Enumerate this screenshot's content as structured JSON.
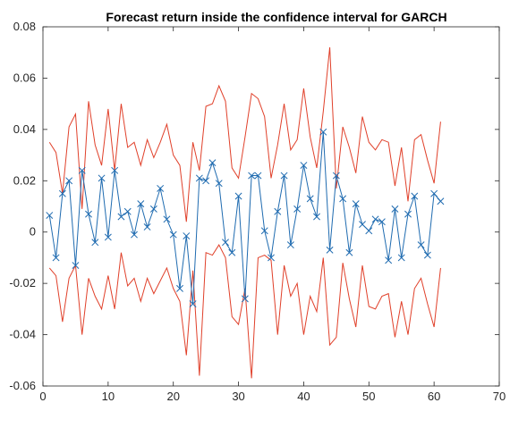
{
  "chart_data": {
    "type": "line",
    "title": "Forecast return inside the confidence interval for GARCH",
    "xlabel": "",
    "ylabel": "",
    "xlim": [
      0,
      70
    ],
    "ylim": [
      -0.06,
      0.08
    ],
    "x_ticks": [
      0,
      10,
      20,
      30,
      40,
      50,
      60,
      70
    ],
    "y_ticks": [
      -0.06,
      -0.04,
      -0.02,
      0,
      0.02,
      0.04,
      0.06,
      0.08
    ],
    "x_tick_labels": [
      "0",
      "10",
      "20",
      "30",
      "40",
      "50",
      "60",
      "70"
    ],
    "y_tick_labels": [
      "-0.06",
      "-0.04",
      "-0.02",
      "0",
      "0.02",
      "0.04",
      "0.06",
      "0.08"
    ],
    "grid": false,
    "x": [
      1,
      2,
      3,
      4,
      5,
      6,
      7,
      8,
      9,
      10,
      11,
      12,
      13,
      14,
      15,
      16,
      17,
      18,
      19,
      20,
      21,
      22,
      23,
      24,
      25,
      26,
      27,
      28,
      29,
      30,
      31,
      32,
      33,
      34,
      35,
      36,
      37,
      38,
      39,
      40,
      41,
      42,
      43,
      44,
      45,
      46,
      47,
      48,
      49,
      50,
      51,
      52,
      53,
      54,
      55,
      56,
      57,
      58,
      59,
      60,
      61
    ],
    "series": [
      {
        "color": "#e0402a",
        "marker": "none",
        "values": [
          0.035,
          0.031,
          0.015,
          0.041,
          0.046,
          0.009,
          0.051,
          0.034,
          0.026,
          0.048,
          0.024,
          0.05,
          0.033,
          0.035,
          0.026,
          0.036,
          0.029,
          0.035,
          0.042,
          0.03,
          0.026,
          0.004,
          0.035,
          0.024,
          0.049,
          0.05,
          0.057,
          0.051,
          0.025,
          0.021,
          0.037,
          0.054,
          0.052,
          0.045,
          0.021,
          0.034,
          0.05,
          0.032,
          0.036,
          0.056,
          0.037,
          0.025,
          0.047,
          0.072,
          0.017,
          0.041,
          0.033,
          0.023,
          0.045,
          0.035,
          0.032,
          0.036,
          0.035,
          0.018,
          0.033,
          0.012,
          0.036,
          0.038,
          0.028,
          0.019,
          0.043
        ]
      },
      {
        "color": "#e0402a",
        "marker": "none",
        "values": [
          -0.014,
          -0.017,
          -0.035,
          -0.018,
          -0.013,
          -0.04,
          -0.018,
          -0.025,
          -0.03,
          -0.017,
          -0.03,
          -0.008,
          -0.021,
          -0.018,
          -0.027,
          -0.018,
          -0.024,
          -0.019,
          -0.014,
          -0.022,
          -0.027,
          -0.048,
          -0.015,
          -0.056,
          -0.008,
          -0.009,
          -0.005,
          -0.01,
          -0.033,
          -0.036,
          -0.022,
          -0.057,
          -0.01,
          -0.009,
          -0.011,
          -0.04,
          -0.013,
          -0.025,
          -0.02,
          -0.04,
          -0.025,
          -0.031,
          -0.01,
          -0.044,
          -0.041,
          -0.012,
          -0.026,
          -0.037,
          -0.013,
          -0.029,
          -0.03,
          -0.025,
          -0.024,
          -0.041,
          -0.027,
          -0.04,
          -0.022,
          -0.018,
          -0.028,
          -0.037,
          -0.014
        ]
      },
      {
        "color": "#1f6bb0",
        "marker": "x",
        "values": [
          0.0065,
          -0.01,
          0.015,
          0.02,
          -0.013,
          0.024,
          0.007,
          -0.004,
          0.021,
          -0.002,
          0.024,
          0.006,
          0.008,
          -0.001,
          0.011,
          0.002,
          0.009,
          0.017,
          0.005,
          -0.001,
          -0.022,
          -0.0015,
          -0.028,
          0.021,
          0.02,
          0.027,
          0.019,
          -0.004,
          -0.008,
          0.014,
          -0.026,
          0.022,
          0.022,
          0.0005,
          -0.01,
          0.008,
          0.022,
          -0.005,
          0.009,
          0.026,
          0.013,
          0.006,
          0.039,
          -0.007,
          0.022,
          0.013,
          -0.008,
          0.011,
          0.003,
          0.0005,
          0.005,
          0.004,
          -0.011,
          0.009,
          -0.01,
          0.007,
          0.014,
          -0.005,
          -0.009,
          0.015,
          0.012
        ]
      }
    ]
  }
}
